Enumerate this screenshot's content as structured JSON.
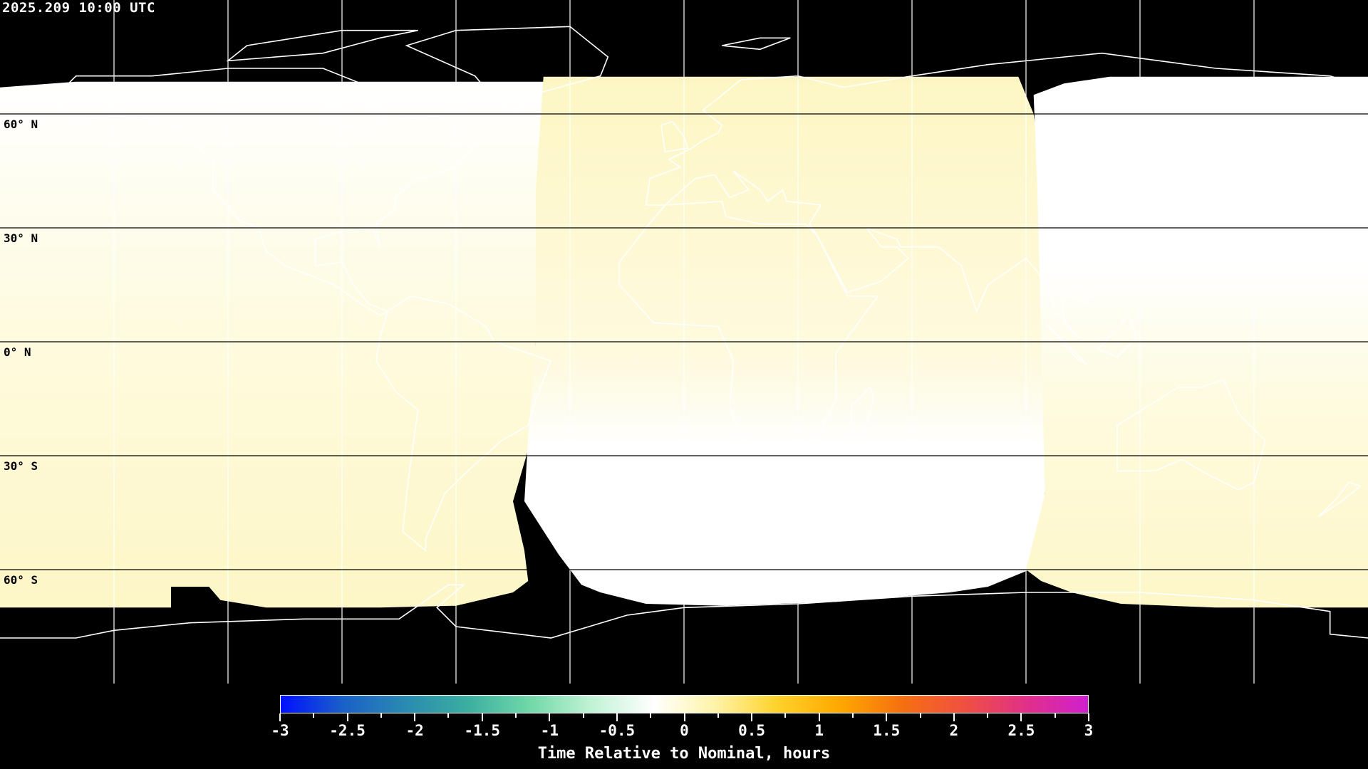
{
  "title": "2025.209 10:00 UTC",
  "map": {
    "projection": "equirectangular",
    "lon_range": [
      -180,
      180
    ],
    "lat_range": [
      -90,
      90
    ],
    "grid_spacing_deg": 30,
    "lat_labels": [
      {
        "lat": 60,
        "text": "60° N"
      },
      {
        "lat": 30,
        "text": "30° N"
      },
      {
        "lat": 0,
        "text": "0° N"
      },
      {
        "lat": -30,
        "text": "30° S"
      },
      {
        "lat": -60,
        "text": "60° S"
      }
    ],
    "colors": {
      "background": "#000000",
      "near_zero": "#ffffff",
      "slightly_late": "#fdf8c8",
      "grid": "#000000",
      "coast_on_data": "#000000",
      "coast_on_black": "#ffffff"
    }
  },
  "colorbar": {
    "min": -3,
    "max": 3,
    "tick_labels": [
      "-3",
      "-2.5",
      "-2",
      "-1.5",
      "-1",
      "-0.5",
      "0",
      "0.5",
      "1",
      "1.5",
      "2",
      "2.5",
      "3"
    ],
    "label": "Time Relative to Nominal, hours",
    "colors": [
      "#0010ff",
      "#1a60c8",
      "#2a8ab0",
      "#3aaea0",
      "#70d8a8",
      "#c0f2d4",
      "#ffffff",
      "#fff3a8",
      "#ffd22a",
      "#ffa800",
      "#f57010",
      "#f05040",
      "#e03088",
      "#d020d0"
    ]
  }
}
